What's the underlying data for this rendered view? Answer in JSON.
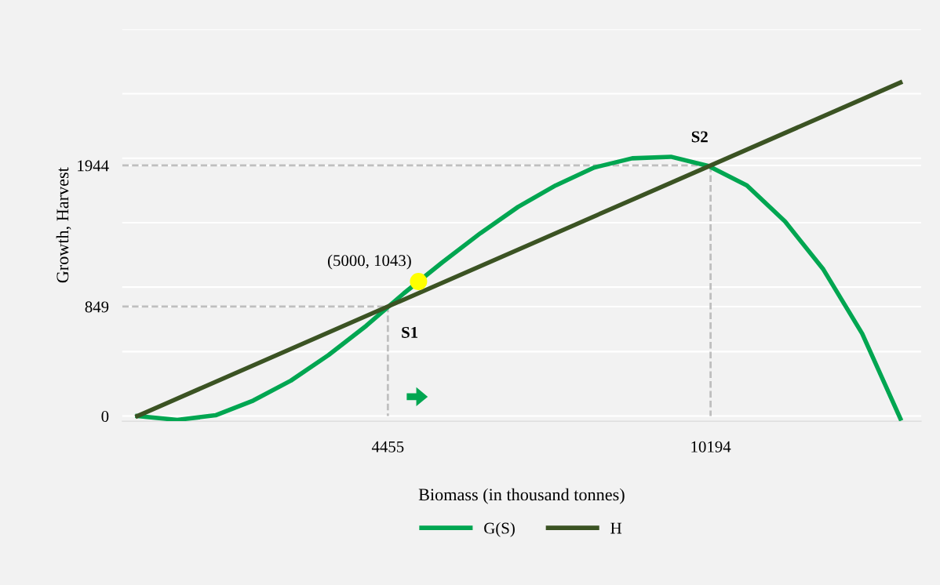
{
  "chart_data": {
    "type": "line",
    "xlabel": "Biomass (in thousand tonnes)",
    "ylabel": "Growth, Harvest",
    "xlim": [
      -270,
      13940
    ],
    "ylim": [
      -40,
      3000
    ],
    "xticks": [
      4455,
      10194
    ],
    "yticks": [
      0,
      {
        "value": 500,
        "label": null
      },
      849,
      {
        "value": 1000,
        "label": null
      },
      {
        "value": 1500,
        "label": null
      },
      1944,
      {
        "value": 2000,
        "label": null
      },
      {
        "value": 2500,
        "label": null
      },
      {
        "value": 3000,
        "label": null
      }
    ],
    "grid": "y",
    "legend": "bottom",
    "marker": "none",
    "line_style": "solid",
    "series": [
      {
        "name": "G(S)",
        "color": "#00a651",
        "x": [
          0,
          710,
          1390,
          2060,
          2730,
          3400,
          4070,
          4740,
          5420,
          6100,
          6770,
          7440,
          8120,
          8800,
          9490,
          10160,
          10840,
          11520,
          12200,
          12890,
          13570
        ],
        "values": [
          0,
          -30,
          6,
          120,
          275,
          473,
          700,
          952,
          1191,
          1418,
          1622,
          1789,
          1927,
          1999,
          2011,
          1939,
          1789,
          1508,
          1137,
          640,
          -20
        ]
      },
      {
        "name": "H",
        "color": "#3b5323",
        "x": [
          0,
          13570
        ],
        "values": [
          0,
          2587
        ]
      },
      {
        "type": "line",
        "color": "#bfbfbf",
        "line_style": "dashed",
        "x": [
          -270,
          4455,
          4455
        ],
        "values": [
          849,
          849,
          0
        ]
      },
      {
        "type": "line",
        "color": "#bfbfbf",
        "line_style": "dashed",
        "x": [
          -270,
          10194,
          10194
        ],
        "values": [
          1944,
          1944,
          0
        ]
      },
      {
        "type": "scatter",
        "color": "#ffff00",
        "marker": "circle",
        "x": [
          5000
        ],
        "values": [
          1043
        ]
      }
    ],
    "annotations": [
      {
        "text": "(5000, 1043)",
        "x": 5000,
        "y": 1043
      },
      {
        "text": "S1",
        "x": 4455,
        "y": 849
      },
      {
        "text": "S2",
        "x": 10194,
        "y": 1944
      }
    ]
  }
}
